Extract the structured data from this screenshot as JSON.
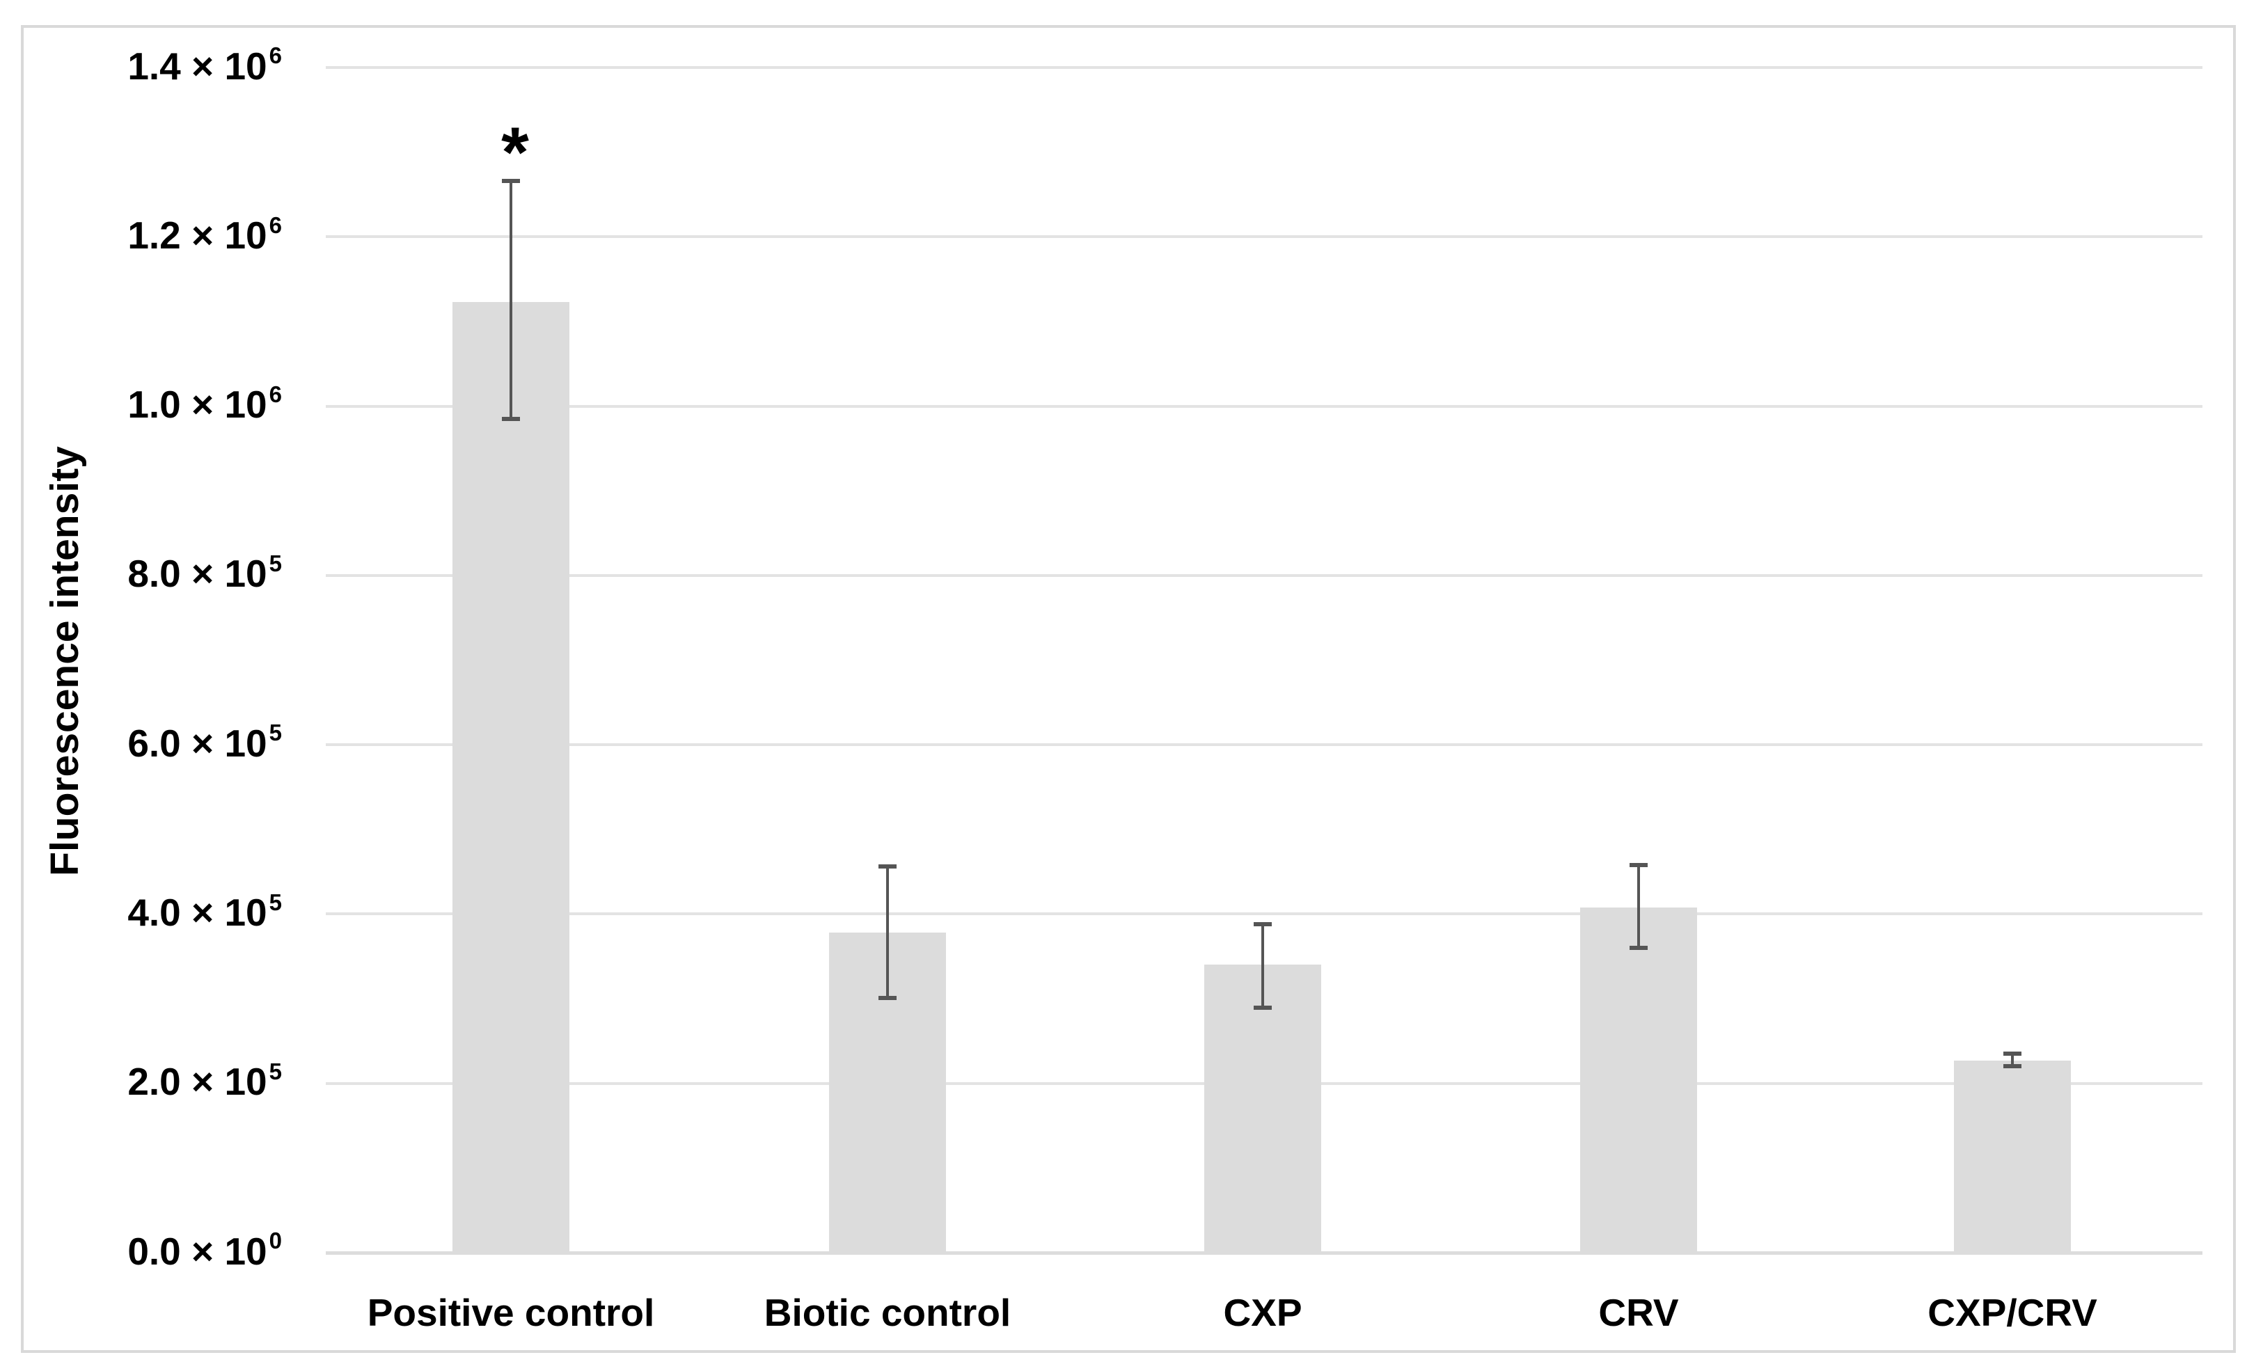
{
  "chart_data": {
    "type": "bar",
    "title": "",
    "xlabel": "",
    "ylabel": "Fluorescence intensity",
    "categories": [
      "Positive control",
      "Biotic control",
      "CXP",
      "CRV",
      "CXP/CRV"
    ],
    "values": [
      1123000,
      378000,
      340000,
      408000,
      227000
    ],
    "error_up": [
      143000,
      78000,
      48000,
      50000,
      8000
    ],
    "error_down": [
      138000,
      77000,
      51000,
      48000,
      7000
    ],
    "ylim": [
      0,
      1400000
    ],
    "yticks": [
      {
        "value": 0,
        "text": "0.0 × 10",
        "sup": "0"
      },
      {
        "value": 200000,
        "text": "2.0 × 10",
        "sup": "5"
      },
      {
        "value": 400000,
        "text": "4.0 × 10",
        "sup": "5"
      },
      {
        "value": 600000,
        "text": "6.0 × 10",
        "sup": "5"
      },
      {
        "value": 800000,
        "text": "8.0 × 10",
        "sup": "5"
      },
      {
        "value": 1000000,
        "text": "1.0 × 10",
        "sup": "6"
      },
      {
        "value": 1200000,
        "text": "1.2 × 10",
        "sup": "6"
      },
      {
        "value": 1400000,
        "text": "1.4 × 10",
        "sup": "6"
      }
    ],
    "grid": true,
    "legend": false,
    "annotation": {
      "text": "*",
      "category": "Positive control",
      "category_index": 0
    },
    "colors": {
      "bar_fill": "#dcdcdc",
      "error_bar": "#555555",
      "gridline": "#e3e3e3",
      "chart_border": "#d9d9d9",
      "text": "#000000",
      "background": "#ffffff"
    }
  }
}
